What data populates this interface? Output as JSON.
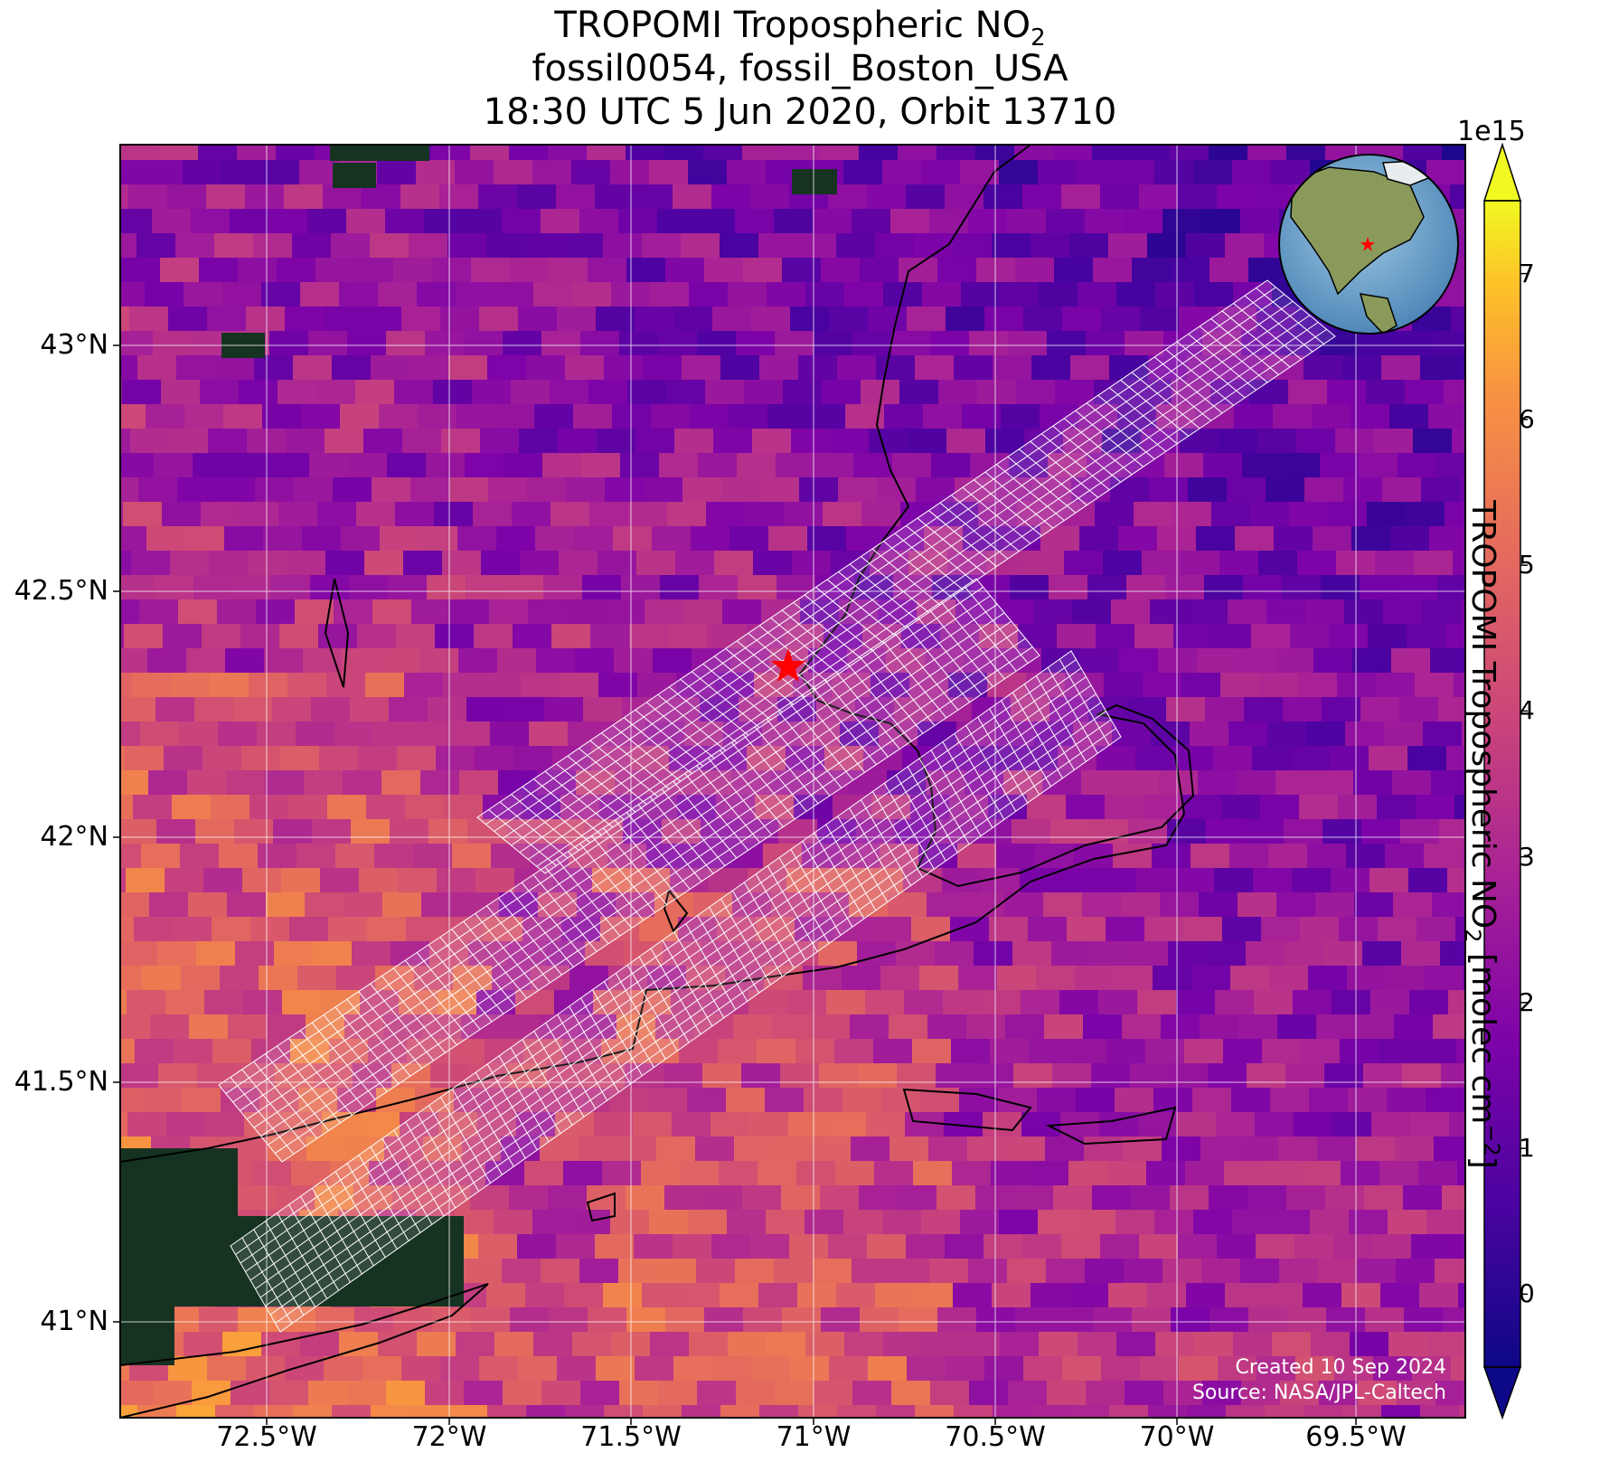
{
  "title": {
    "line1_prefix": "TROPOMI Tropospheric NO",
    "line1_sub": "2",
    "line2": "fossil0054, fossil_Boston_USA",
    "line3": "18:30 UTC 5 Jun 2020, Orbit 13710"
  },
  "map": {
    "lon_ticks": [
      "72.5°W",
      "72°W",
      "71.5°W",
      "71°W",
      "70.5°W",
      "70°W",
      "69.5°W"
    ],
    "lat_ticks": [
      "43°N",
      "42.5°N",
      "42°N",
      "41.5°N",
      "41°N"
    ],
    "target_marker": "red-star",
    "credit_line1": "Created 10 Sep 2024",
    "credit_line2": "Source: NASA/JPL-Caltech"
  },
  "colorbar": {
    "exponent": "1e15",
    "ticks": [
      "0",
      "1",
      "2",
      "3",
      "4",
      "5",
      "6",
      "7"
    ],
    "label_prefix": "TROPOMI Tropospheric NO",
    "label_sub": "2",
    "label_mid": " [molec cm",
    "label_sup": "−2",
    "label_suffix": "]",
    "colormap": "plasma",
    "range": [
      -0.5,
      7.5
    ]
  },
  "colors": {
    "credit_text": "#ffffff",
    "target_star": "#ff0000",
    "grid": "#ffffff"
  }
}
